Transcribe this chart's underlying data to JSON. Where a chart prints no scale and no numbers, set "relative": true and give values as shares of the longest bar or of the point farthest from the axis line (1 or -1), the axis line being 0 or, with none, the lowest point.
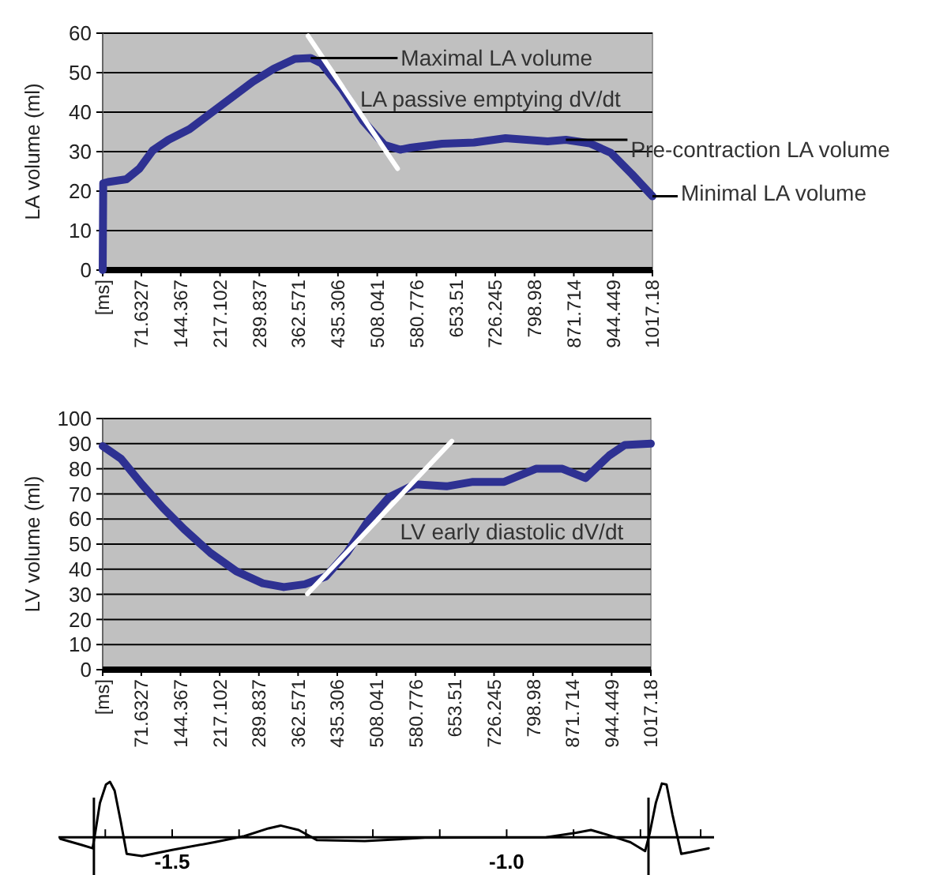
{
  "chart_data": [
    {
      "type": "line",
      "ylabel": "LA volume (ml)",
      "xlim": [
        0,
        1017.18
      ],
      "ylim": [
        0,
        60
      ],
      "yticks": [
        0,
        10,
        20,
        30,
        40,
        50,
        60
      ],
      "grid": "y",
      "xticks": [
        {
          "value": 0,
          "label": "[ms]"
        },
        71.6327,
        144.367,
        217.102,
        289.837,
        362.571,
        435.306,
        508.041,
        580.776,
        653.51,
        726.245,
        798.98,
        871.714,
        944.449,
        1017.18
      ],
      "series": [
        {
          "color": "#2e3192",
          "x": [
            0,
            1,
            9.8,
            43.8,
            68,
            92.6,
            121.8,
            160.8,
            199.7,
            238.7,
            277.7,
            316.6,
            355.6,
            384.9,
            404.3,
            443.4,
            482.3,
            521.2,
            550.5,
            570,
            628,
            686.9,
            745.4,
            823.3,
            857,
            901.2,
            940.2,
            979.2,
            1017.18
          ],
          "values": [
            0,
            22,
            22.3,
            23,
            25.7,
            30.3,
            33,
            35.7,
            39.7,
            43.7,
            47.7,
            51,
            53.5,
            53.7,
            52.4,
            45.7,
            37.7,
            31.7,
            30.5,
            31,
            32,
            32.3,
            33.4,
            32.6,
            33,
            32.1,
            29.7,
            24.3,
            18.7
          ]
        },
        {
          "type": "line",
          "color": "#ffffff",
          "x": [
            380,
            545.7
          ],
          "values": [
            59.3,
            25.7
          ]
        }
      ],
      "annotations": [
        {
          "text": "Maximal LA volume",
          "x": 384.9,
          "y": 53.7
        },
        {
          "text": "LA passive emptying dV/dt",
          "x": 450,
          "y": 45
        },
        {
          "text": "Pre-contraction LA volume",
          "x": 857,
          "y": 33
        },
        {
          "text": "Minimal LA volume",
          "x": 1017.18,
          "y": 18.7
        }
      ]
    },
    {
      "type": "line",
      "ylabel": "LV volume (ml)",
      "xlim": [
        0,
        1017.18
      ],
      "ylim": [
        0,
        100
      ],
      "yticks": [
        0,
        10,
        20,
        30,
        40,
        50,
        60,
        70,
        80,
        90,
        100
      ],
      "grid": "y",
      "xticks": [
        {
          "value": 0,
          "label": "[ms]"
        },
        71.6327,
        144.367,
        217.102,
        289.837,
        362.571,
        435.306,
        508.041,
        580.776,
        653.51,
        726.245,
        798.98,
        871.714,
        944.449,
        1017.18
      ],
      "series": [
        {
          "color": "#2e3192",
          "x": [
            0,
            34,
            73,
            112,
            151,
            200,
            248,
            297,
            336,
            375,
            414,
            453,
            492,
            531,
            580,
            638,
            687,
            745,
            804,
            853,
            896,
            940,
            969,
            1017.18
          ],
          "values": [
            89,
            84,
            73.8,
            64.4,
            56,
            46.5,
            39.2,
            34.4,
            32.9,
            34,
            37.1,
            46.5,
            59,
            68.6,
            73.8,
            73,
            74.8,
            74.8,
            80,
            80,
            76.3,
            85.3,
            89.5,
            90
          ]
        },
        {
          "type": "line",
          "color": "#ffffff",
          "x": [
            380,
            648
          ],
          "values": [
            30.2,
            91
          ]
        }
      ],
      "annotations": [
        {
          "text": "LV early diastolic dV/dt",
          "x": 502,
          "y": 58
        }
      ]
    },
    {
      "type": "line",
      "relative": true,
      "xlim": [
        -1.67,
        -0.69
      ],
      "xticks": [
        {
          "value": -1.6,
          "label": null
        },
        -1.5,
        {
          "value": -1.4,
          "label": null
        },
        {
          "value": -1.3,
          "label": null
        },
        {
          "value": -1.2,
          "label": null
        },
        {
          "value": -1.1,
          "label": null
        },
        {
          "value": -1,
          "label": "-1.0"
        },
        {
          "value": -0.9,
          "label": null
        },
        {
          "value": -0.8,
          "label": null
        },
        {
          "value": -0.71,
          "label": null
        }
      ],
      "ref_lines": [
        {
          "axis": "x",
          "value": -1.617,
          "color": "#000000"
        },
        {
          "axis": "x",
          "value": -0.788,
          "color": "#000000"
        }
      ],
      "series": [
        {
          "color": "#000000",
          "x": [
            -1.667,
            -1.635,
            -1.619,
            -1.615,
            -1.608,
            -1.599,
            -1.593,
            -1.586,
            -1.577,
            -1.568,
            -1.545,
            -1.5,
            -1.437,
            -1.392,
            -1.356,
            -1.338,
            -1.311,
            -1.284,
            -1.212,
            -1.122,
            -0.941,
            -0.896,
            -0.874,
            -0.851,
            -0.815,
            -0.793,
            -0.786,
            -0.777,
            -0.768,
            -0.761,
            -0.752,
            -0.739,
            -0.725,
            -0.698
          ],
          "values": [
            -0.03,
            -0.14,
            -0.2,
            0.08,
            0.62,
            0.95,
            1,
            0.84,
            0.29,
            -0.3,
            -0.34,
            -0.23,
            -0.09,
            0.02,
            0.16,
            0.21,
            0.13,
            -0.05,
            -0.07,
            -0.01,
            0,
            0.08,
            0.13,
            0.05,
            -0.09,
            -0.25,
            0.08,
            0.62,
            0.97,
            0.95,
            0.4,
            -0.3,
            -0.27,
            -0.2
          ]
        }
      ]
    }
  ]
}
